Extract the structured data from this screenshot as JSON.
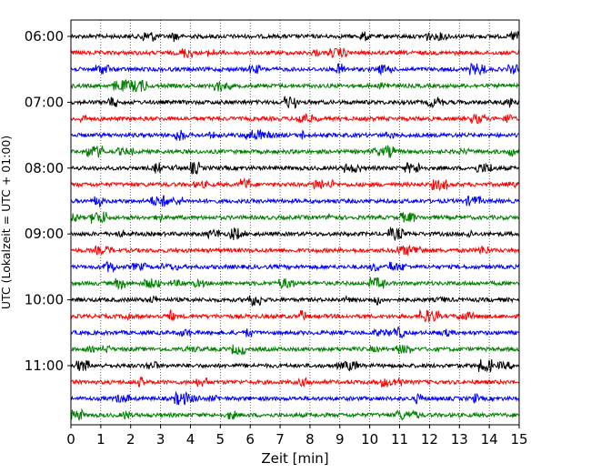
{
  "chart_data": {
    "type": "line",
    "title": "",
    "xlabel": "Zeit  [min]",
    "ylabel": "UTC (Lokalzeit = UTC + 01:00)",
    "xlim": [
      0,
      15
    ],
    "x_ticks": [
      0,
      1,
      2,
      3,
      4,
      5,
      6,
      7,
      8,
      9,
      10,
      11,
      12,
      13,
      14,
      15
    ],
    "x_grid": true,
    "y_ticks": [
      "06:00",
      "07:00",
      "08:00",
      "09:00",
      "10:00",
      "11:00"
    ],
    "traces_per_hour": 4,
    "start_hour": 6,
    "trace_count": 24,
    "trace_colors": [
      "#000000",
      "#ff0000",
      "#0000ff",
      "#007f00"
    ],
    "noise_amplitude": 0.12
  }
}
